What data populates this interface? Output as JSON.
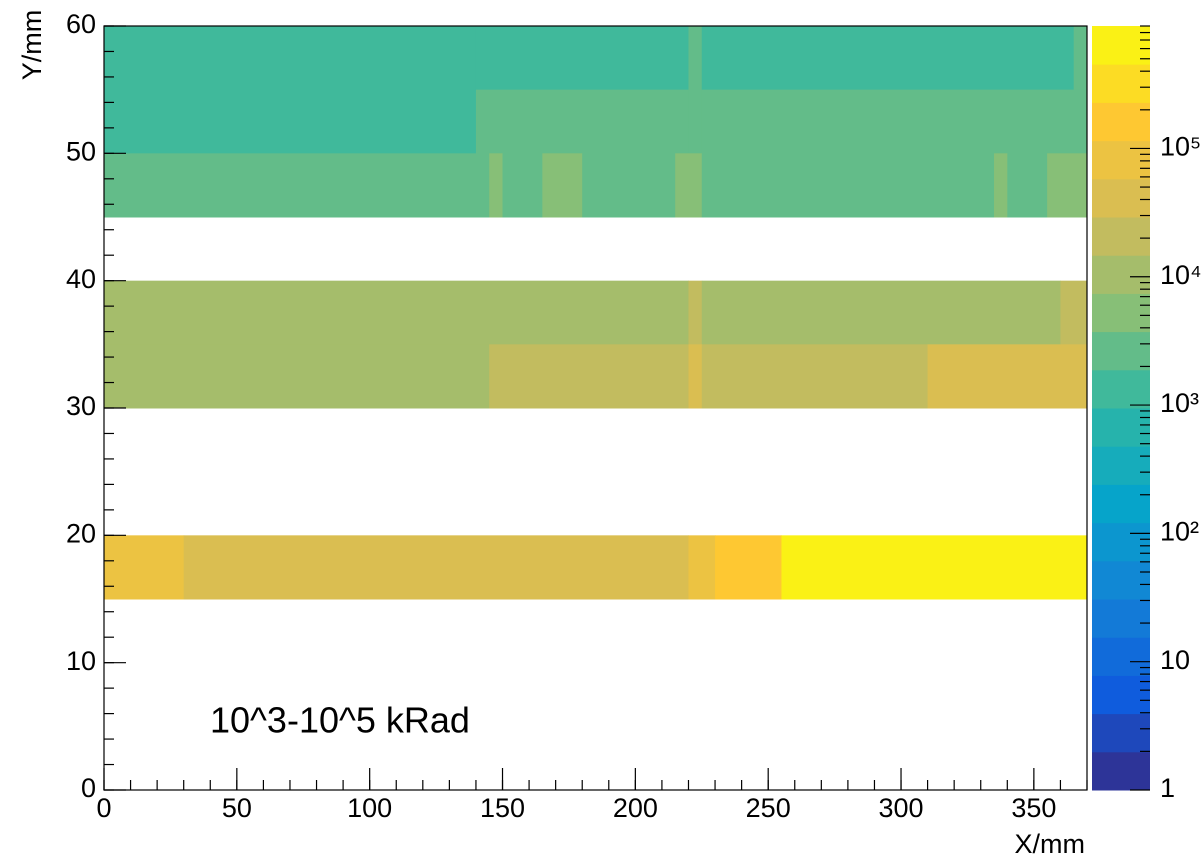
{
  "chart_data": {
    "type": "heatmap",
    "x_label": "X/mm",
    "y_label": "Y/mm",
    "annotation": "10^3-10^5 kRad",
    "xlim": [
      0,
      370
    ],
    "xticks": [
      0,
      50,
      100,
      150,
      200,
      250,
      300,
      350
    ],
    "xminor_step": 10,
    "ylim": [
      0,
      60
    ],
    "yticks": [
      0,
      10,
      20,
      30,
      40,
      50,
      60
    ],
    "yminor_step": 2,
    "zlim": [
      1,
      900000
    ],
    "zscale": "log",
    "levels": 20,
    "zticks": [
      1,
      10,
      {
        "value": 100,
        "label": "10²"
      },
      {
        "value": 1000,
        "label": "10³"
      },
      {
        "value": 10000,
        "label": "10⁴"
      },
      {
        "value": 100000,
        "label": "10⁵"
      }
    ],
    "colorscale": [
      "#352a87",
      "#0f5cdd",
      "#1481d6",
      "#06a4ca",
      "#2eb7a4",
      "#87bf77",
      "#d1bb59",
      "#fec832",
      "#f9fb0e"
    ],
    "cells": [
      {
        "x": [
          0,
          140
        ],
        "y": [
          50,
          60
        ],
        "value": 1500
      },
      {
        "x": [
          140,
          220
        ],
        "y": [
          55,
          60
        ],
        "value": 1500
      },
      {
        "x": [
          220,
          225
        ],
        "y": [
          50,
          60
        ],
        "value": 3000
      },
      {
        "x": [
          225,
          365
        ],
        "y": [
          55,
          60
        ],
        "value": 1500
      },
      {
        "x": [
          365,
          370
        ],
        "y": [
          55,
          60
        ],
        "value": 3000
      },
      {
        "x": [
          140,
          220
        ],
        "y": [
          50,
          55
        ],
        "value": 3000
      },
      {
        "x": [
          225,
          370
        ],
        "y": [
          50,
          55
        ],
        "value": 3000
      },
      {
        "x": [
          0,
          145
        ],
        "y": [
          45,
          50
        ],
        "value": 3000
      },
      {
        "x": [
          145,
          150
        ],
        "y": [
          45,
          50
        ],
        "value": 5000
      },
      {
        "x": [
          150,
          165
        ],
        "y": [
          45,
          50
        ],
        "value": 3000
      },
      {
        "x": [
          165,
          180
        ],
        "y": [
          45,
          50
        ],
        "value": 5000
      },
      {
        "x": [
          180,
          215
        ],
        "y": [
          45,
          50
        ],
        "value": 3000
      },
      {
        "x": [
          215,
          225
        ],
        "y": [
          45,
          50
        ],
        "value": 5000
      },
      {
        "x": [
          225,
          335
        ],
        "y": [
          45,
          50
        ],
        "value": 3000
      },
      {
        "x": [
          335,
          340
        ],
        "y": [
          45,
          50
        ],
        "value": 5000
      },
      {
        "x": [
          340,
          355
        ],
        "y": [
          45,
          50
        ],
        "value": 3000
      },
      {
        "x": [
          355,
          370
        ],
        "y": [
          45,
          50
        ],
        "value": 5000
      },
      {
        "x": [
          0,
          220
        ],
        "y": [
          35,
          40
        ],
        "value": 8000
      },
      {
        "x": [
          220,
          225
        ],
        "y": [
          35,
          40
        ],
        "value": 15000
      },
      {
        "x": [
          225,
          360
        ],
        "y": [
          35,
          40
        ],
        "value": 8000
      },
      {
        "x": [
          360,
          370
        ],
        "y": [
          35,
          40
        ],
        "value": 15000
      },
      {
        "x": [
          0,
          145
        ],
        "y": [
          30,
          35
        ],
        "value": 8000
      },
      {
        "x": [
          145,
          220
        ],
        "y": [
          30,
          35
        ],
        "value": 15000
      },
      {
        "x": [
          220,
          225
        ],
        "y": [
          30,
          35
        ],
        "value": 30000
      },
      {
        "x": [
          225,
          310
        ],
        "y": [
          30,
          35
        ],
        "value": 15000
      },
      {
        "x": [
          310,
          370
        ],
        "y": [
          30,
          35
        ],
        "value": 30000
      },
      {
        "x": [
          0,
          5
        ],
        "y": [
          15,
          20
        ],
        "value": 80000
      },
      {
        "x": [
          5,
          30
        ],
        "y": [
          15,
          20
        ],
        "value": 100000
      },
      {
        "x": [
          30,
          220
        ],
        "y": [
          15,
          20
        ],
        "value": 50000
      },
      {
        "x": [
          220,
          230
        ],
        "y": [
          15,
          20
        ],
        "value": 90000
      },
      {
        "x": [
          230,
          255
        ],
        "y": [
          15,
          20
        ],
        "value": 200000
      },
      {
        "x": [
          255,
          370
        ],
        "y": [
          15,
          20
        ],
        "value": 700000
      }
    ]
  }
}
